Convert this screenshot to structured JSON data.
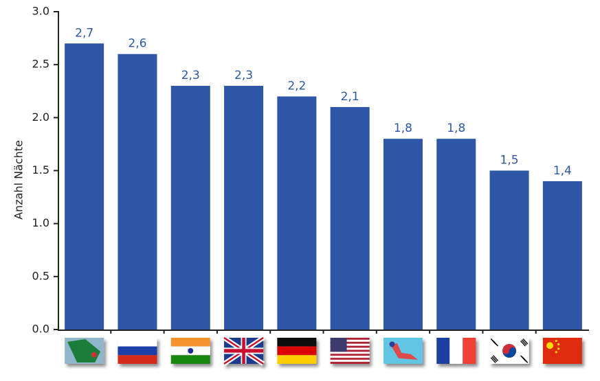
{
  "chart_data": {
    "type": "bar",
    "y_label": "Anzahl Nächte",
    "categories": [
      null,
      null,
      null,
      null,
      null,
      null,
      null,
      null,
      null,
      null
    ],
    "values": [
      2.7,
      2.6,
      2.3,
      2.3,
      2.2,
      2.1,
      1.8,
      1.8,
      1.5,
      1.4
    ],
    "value_labels": [
      "2,7",
      "2,6",
      "2,3",
      "2,3",
      "2,2",
      "2,1",
      "1,8",
      "1,8",
      "1,5",
      "1,4"
    ],
    "color": "#2e56a6",
    "ylim": [
      0,
      3
    ],
    "yticks": [
      {
        "value": 0,
        "label": "0.0"
      },
      {
        "value": 0.5,
        "label": "0.5"
      },
      {
        "value": 1,
        "label": "1.0"
      },
      {
        "value": 1.5,
        "label": "1.5"
      },
      {
        "value": 2,
        "label": "2.0"
      },
      {
        "value": 2.5,
        "label": "2.5"
      },
      {
        "value": 3,
        "label": "3.0"
      }
    ],
    "grid": false
  }
}
